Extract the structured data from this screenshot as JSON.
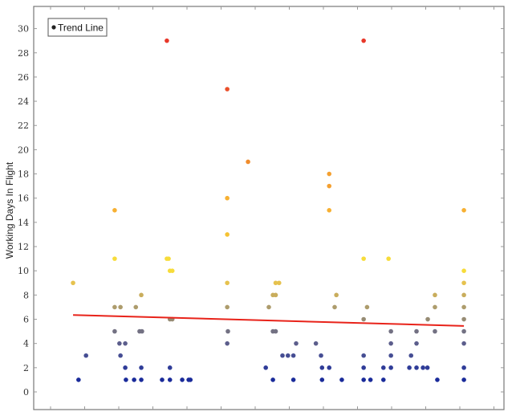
{
  "chart_data": {
    "type": "scatter",
    "title": "",
    "xlabel": "",
    "ylabel": "Working Days In Flight",
    "ylim": [
      -1.5,
      31.5
    ],
    "xlim": [
      0.5,
      14.3
    ],
    "yticks": [
      0,
      2,
      4,
      6,
      8,
      10,
      12,
      14,
      16,
      18,
      20,
      22,
      24,
      26,
      28,
      30
    ],
    "xticks": [
      1,
      2,
      3,
      4,
      5,
      6,
      7,
      8,
      9,
      10,
      11,
      12,
      13,
      14
    ],
    "xtick_labels_visible": false,
    "grid": false,
    "legend": {
      "position": "upper left",
      "entries": [
        "Trend Line"
      ]
    },
    "color_scale": {
      "1": "#1a2b9a",
      "2": "#2f3c98",
      "3": "#454d93",
      "4": "#5c5e8c",
      "5": "#737183",
      "6": "#968b73",
      "7": "#ad9c6c",
      "8": "#c9ad5c",
      "9": "#e6c24e",
      "10": "#f7dc3a",
      "11": "#f7dc3a",
      "13": "#f5c233",
      "15": "#f7b032",
      "16": "#f7b032",
      "17": "#f4a030",
      "18": "#f4a030",
      "19": "#f08c2c",
      "25": "#ea4f2a",
      "29": "#e8382a"
    },
    "series": [
      {
        "name": "Working Days In Flight",
        "type": "scatter",
        "points": [
          [
            1.66,
            9
          ],
          [
            1.82,
            1
          ],
          [
            2.04,
            3
          ],
          [
            2.88,
            15
          ],
          [
            2.88,
            11
          ],
          [
            2.88,
            7
          ],
          [
            2.88,
            5
          ],
          [
            3.05,
            7
          ],
          [
            3.05,
            3
          ],
          [
            3.02,
            4
          ],
          [
            3.19,
            4
          ],
          [
            3.19,
            2
          ],
          [
            3.21,
            1
          ],
          [
            3.45,
            1
          ],
          [
            3.66,
            8
          ],
          [
            3.5,
            7
          ],
          [
            3.61,
            5
          ],
          [
            3.68,
            5
          ],
          [
            3.66,
            2
          ],
          [
            3.66,
            1
          ],
          [
            4.27,
            1
          ],
          [
            4.41,
            11
          ],
          [
            4.46,
            11
          ],
          [
            4.5,
            10
          ],
          [
            4.57,
            10
          ],
          [
            4.5,
            6
          ],
          [
            4.57,
            6
          ],
          [
            4.5,
            2
          ],
          [
            4.5,
            1
          ],
          [
            4.86,
            1
          ],
          [
            5.05,
            1
          ],
          [
            5.1,
            1
          ],
          [
            4.41,
            29
          ],
          [
            6.18,
            25
          ],
          [
            6.18,
            16
          ],
          [
            6.18,
            13
          ],
          [
            6.18,
            9
          ],
          [
            6.18,
            7
          ],
          [
            6.2,
            5
          ],
          [
            6.18,
            4
          ],
          [
            6.79,
            19
          ],
          [
            7.31,
            2
          ],
          [
            7.52,
            8
          ],
          [
            7.52,
            5
          ],
          [
            7.6,
            9
          ],
          [
            7.6,
            8
          ],
          [
            7.4,
            7
          ],
          [
            7.52,
            1
          ],
          [
            7.7,
            9
          ],
          [
            7.6,
            5
          ],
          [
            7.8,
            3
          ],
          [
            7.96,
            3
          ],
          [
            8.12,
            3
          ],
          [
            8.2,
            4
          ],
          [
            8.12,
            1
          ],
          [
            8.78,
            4
          ],
          [
            8.93,
            3
          ],
          [
            8.96,
            2
          ],
          [
            8.96,
            1
          ],
          [
            9.17,
            18
          ],
          [
            9.17,
            17
          ],
          [
            9.17,
            15
          ],
          [
            9.17,
            2
          ],
          [
            9.38,
            8
          ],
          [
            9.33,
            7
          ],
          [
            9.54,
            1
          ],
          [
            10.18,
            29
          ],
          [
            10.18,
            11
          ],
          [
            10.18,
            6
          ],
          [
            10.18,
            3
          ],
          [
            10.18,
            2
          ],
          [
            10.18,
            1
          ],
          [
            10.28,
            7
          ],
          [
            10.38,
            1
          ],
          [
            10.91,
            11
          ],
          [
            10.76,
            2
          ],
          [
            10.76,
            1
          ],
          [
            10.98,
            5
          ],
          [
            10.98,
            4
          ],
          [
            10.98,
            3
          ],
          [
            10.98,
            2
          ],
          [
            11.57,
            3
          ],
          [
            11.52,
            2
          ],
          [
            11.73,
            5
          ],
          [
            11.73,
            4
          ],
          [
            11.73,
            2
          ],
          [
            11.92,
            2
          ],
          [
            12.06,
            6
          ],
          [
            12.05,
            2
          ],
          [
            12.27,
            8
          ],
          [
            12.27,
            7
          ],
          [
            12.27,
            5
          ],
          [
            12.34,
            1
          ],
          [
            13.12,
            15
          ],
          [
            13.12,
            10
          ],
          [
            13.12,
            9
          ],
          [
            13.12,
            8
          ],
          [
            13.12,
            7
          ],
          [
            13.12,
            6
          ],
          [
            13.12,
            5
          ],
          [
            13.12,
            4
          ],
          [
            13.12,
            2
          ],
          [
            13.12,
            1
          ]
        ]
      },
      {
        "name": "Trend Line",
        "type": "line",
        "color": "#e8231a",
        "points": [
          [
            1.66,
            6.35
          ],
          [
            13.12,
            5.45
          ]
        ]
      }
    ]
  },
  "legend": {
    "label": "Trend Line"
  },
  "axes": {
    "ylabel": "Working Days In Flight"
  }
}
